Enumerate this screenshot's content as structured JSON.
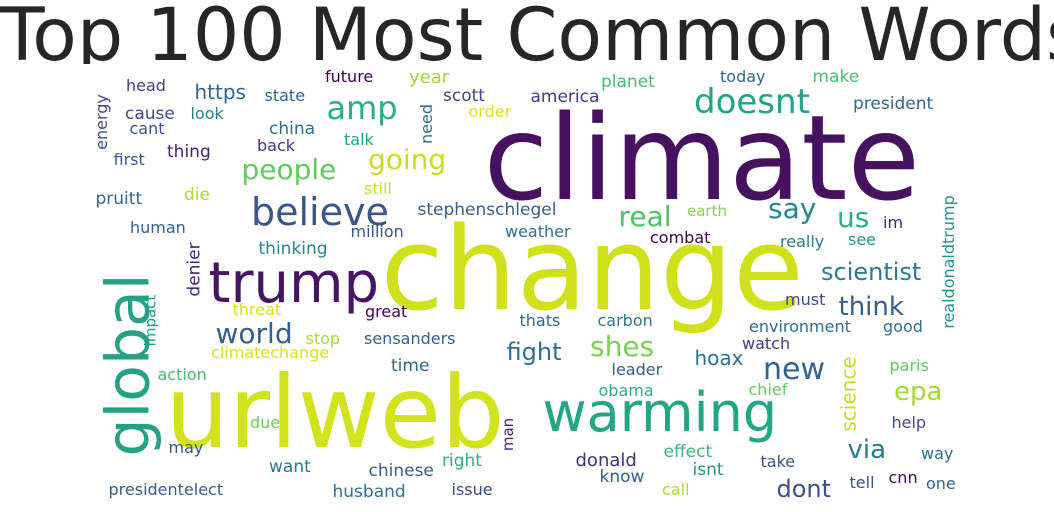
{
  "title": "Top 100 Most Common Words",
  "words": [
    {
      "text": "climate",
      "color": "#46125f"
    },
    {
      "text": "change",
      "color": "#d0e11c"
    },
    {
      "text": "urlweb",
      "color": "#d2e21b"
    },
    {
      "text": "warming",
      "color": "#22a785"
    },
    {
      "text": "global",
      "color": "#25a185"
    },
    {
      "text": "trump",
      "color": "#471365"
    },
    {
      "text": "believe",
      "color": "#39568c"
    },
    {
      "text": "amp",
      "color": "#29af7f"
    },
    {
      "text": "doesnt",
      "color": "#20a386"
    },
    {
      "text": "going",
      "color": "#c5e021"
    },
    {
      "text": "people",
      "color": "#62cb5f"
    },
    {
      "text": "say",
      "color": "#25858e"
    },
    {
      "text": "us",
      "color": "#2ab07f"
    },
    {
      "text": "real",
      "color": "#4fc16b"
    },
    {
      "text": "new",
      "color": "#33628d"
    },
    {
      "text": "world",
      "color": "#355f8d"
    },
    {
      "text": "scientist",
      "color": "#287c8e"
    },
    {
      "text": "think",
      "color": "#35608d"
    },
    {
      "text": "shes",
      "color": "#7ad151"
    },
    {
      "text": "fight",
      "color": "#2c718e"
    },
    {
      "text": "epa",
      "color": "#a2da37"
    },
    {
      "text": "dont",
      "color": "#3b528b"
    },
    {
      "text": "via",
      "color": "#2a788e"
    },
    {
      "text": "hoax",
      "color": "#2c728e"
    },
    {
      "text": "science",
      "color": "#c2df23"
    },
    {
      "text": "https",
      "color": "#32658e"
    },
    {
      "text": "year",
      "color": "#a0da39"
    },
    {
      "text": "future",
      "color": "#440154"
    },
    {
      "text": "make",
      "color": "#44bf70"
    },
    {
      "text": "today",
      "color": "#31688e"
    },
    {
      "text": "planet",
      "color": "#3dbc74"
    },
    {
      "text": "head",
      "color": "#424086"
    },
    {
      "text": "state",
      "color": "#33628d"
    },
    {
      "text": "scott",
      "color": "#414487"
    },
    {
      "text": "america",
      "color": "#443983"
    },
    {
      "text": "need",
      "color": "#2f6c8e"
    },
    {
      "text": "order",
      "color": "#dde318"
    },
    {
      "text": "president",
      "color": "#31678e"
    },
    {
      "text": "cause",
      "color": "#3f4889"
    },
    {
      "text": "look",
      "color": "#26828e"
    },
    {
      "text": "cant",
      "color": "#3b528b"
    },
    {
      "text": "china",
      "color": "#2e6f8e"
    },
    {
      "text": "talk",
      "color": "#20a486"
    },
    {
      "text": "energy",
      "color": "#3e4c8a"
    },
    {
      "text": "thing",
      "color": "#482173"
    },
    {
      "text": "back",
      "color": "#453581"
    },
    {
      "text": "first",
      "color": "#38598c"
    },
    {
      "text": "die",
      "color": "#a8db34"
    },
    {
      "text": "still",
      "color": "#c8e020"
    },
    {
      "text": "realdonaldtrump",
      "color": "#21918c"
    },
    {
      "text": "pruitt",
      "color": "#30698e"
    },
    {
      "text": "stephenschlegel",
      "color": "#365d8d"
    },
    {
      "text": "earth",
      "color": "#86d549"
    },
    {
      "text": "im",
      "color": "#482576"
    },
    {
      "text": "human",
      "color": "#33638d"
    },
    {
      "text": "million",
      "color": "#3a548c"
    },
    {
      "text": "weather",
      "color": "#2c728e"
    },
    {
      "text": "combat",
      "color": "#440154"
    },
    {
      "text": "really",
      "color": "#29798e"
    },
    {
      "text": "see",
      "color": "#1f9a8a"
    },
    {
      "text": "thinking",
      "color": "#24868e"
    },
    {
      "text": "denier",
      "color": "#482677"
    },
    {
      "text": "impact",
      "color": "#1fa188"
    },
    {
      "text": "threat",
      "color": "#d8e219"
    },
    {
      "text": "great",
      "color": "#440154"
    },
    {
      "text": "must",
      "color": "#3e4a89"
    },
    {
      "text": "stop",
      "color": "#a5db36"
    },
    {
      "text": "sensanders",
      "color": "#34608d"
    },
    {
      "text": "thats",
      "color": "#31678e"
    },
    {
      "text": "carbon",
      "color": "#2a788e"
    },
    {
      "text": "environment",
      "color": "#2e6e8e"
    },
    {
      "text": "good",
      "color": "#2c728e"
    },
    {
      "text": "climatechange",
      "color": "#dae319"
    },
    {
      "text": "watch",
      "color": "#443983"
    },
    {
      "text": "time",
      "color": "#33628d"
    },
    {
      "text": "paris",
      "color": "#5ec962"
    },
    {
      "text": "action",
      "color": "#3dbc74"
    },
    {
      "text": "leader",
      "color": "#35608d"
    },
    {
      "text": "chief",
      "color": "#65cb5e"
    },
    {
      "text": "obama",
      "color": "#2ab07f"
    },
    {
      "text": "help",
      "color": "#3e4c8a"
    },
    {
      "text": "man",
      "color": "#482475"
    },
    {
      "text": "may",
      "color": "#39568c"
    },
    {
      "text": "due",
      "color": "#6ccd5a"
    },
    {
      "text": "effect",
      "color": "#35b779"
    },
    {
      "text": "way",
      "color": "#2e6e8e"
    },
    {
      "text": "right",
      "color": "#28ae80"
    },
    {
      "text": "want",
      "color": "#2a788e"
    },
    {
      "text": "donald",
      "color": "#46307e"
    },
    {
      "text": "take",
      "color": "#3a538b"
    },
    {
      "text": "isnt",
      "color": "#1f968b"
    },
    {
      "text": "chinese",
      "color": "#34608d"
    },
    {
      "text": "know",
      "color": "#355f8d"
    },
    {
      "text": "cnn",
      "color": "#450559"
    },
    {
      "text": "tell",
      "color": "#3b518b"
    },
    {
      "text": "presidentelect",
      "color": "#355e8d"
    },
    {
      "text": "husband",
      "color": "#2b758e"
    },
    {
      "text": "issue",
      "color": "#3e4989"
    },
    {
      "text": "call",
      "color": "#aadc32"
    },
    {
      "text": "one",
      "color": "#33638d"
    }
  ]
}
